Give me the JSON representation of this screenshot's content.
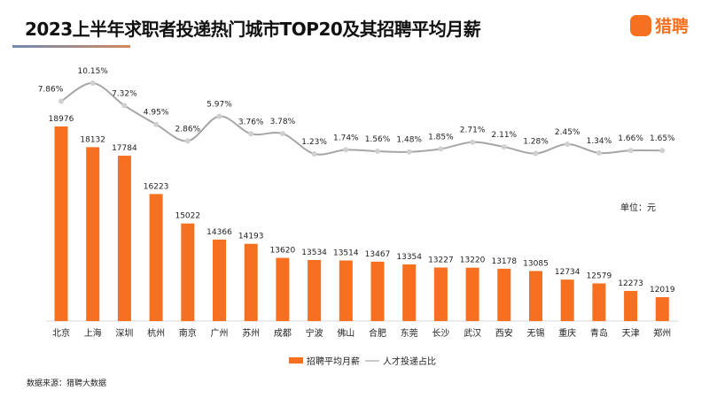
{
  "header": {
    "title": "2023上半年求职者投递热门城市TOP20及其招聘平均月薪",
    "logo_text": "猎聘",
    "logo_icon_text": "猎聘"
  },
  "unit_label": "单位：元",
  "source": "数据来源：猎聘大数据",
  "colors": {
    "bar": "#f6701f",
    "line": "#a6a6a6",
    "marker": "#d0d0d0"
  },
  "chart_data": {
    "type": "bar+line",
    "categories": [
      "北京",
      "上海",
      "深圳",
      "杭州",
      "南京",
      "广州",
      "苏州",
      "成都",
      "宁波",
      "佛山",
      "合肥",
      "东莞",
      "长沙",
      "武汉",
      "西安",
      "无锡",
      "重庆",
      "青岛",
      "天津",
      "郑州"
    ],
    "series": [
      {
        "name": "招聘平均月薪",
        "type": "bar",
        "values": [
          18976,
          18132,
          17784,
          16223,
          15022,
          14366,
          14193,
          13620,
          13534,
          13514,
          13467,
          13354,
          13227,
          13220,
          13178,
          13085,
          12734,
          12579,
          12273,
          12019
        ]
      },
      {
        "name": "人才投递占比",
        "type": "line",
        "smooth": true,
        "values": [
          7.86,
          10.15,
          7.32,
          4.95,
          2.86,
          5.97,
          3.76,
          3.78,
          1.23,
          1.74,
          1.56,
          1.48,
          1.85,
          2.71,
          2.11,
          1.28,
          2.45,
          1.34,
          1.66,
          1.65
        ],
        "labels": [
          "7.86%",
          "10.15%",
          "7.32%",
          "4.95%",
          "2.86%",
          "5.97%",
          "3.76%",
          "3.78%",
          "1.23%",
          "1.74%",
          "1.56%",
          "1.48%",
          "1.85%",
          "2.71%",
          "2.11%",
          "1.28%",
          "2.45%",
          "1.34%",
          "1.66%",
          "1.65%"
        ]
      }
    ],
    "legend": "bottom",
    "grid": false
  }
}
